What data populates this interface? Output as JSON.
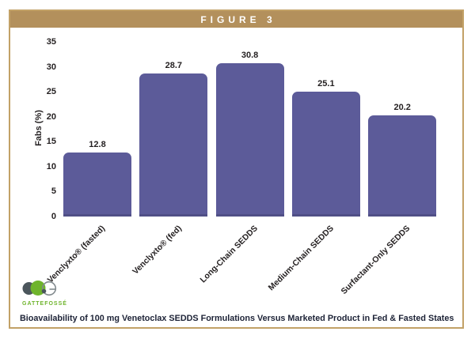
{
  "figure": {
    "header": "FIGURE 3"
  },
  "colors": {
    "accent_tan": "#b3905c",
    "frame_border_tan": "#c2a167",
    "bar_purple": "#5c5b99",
    "caption_navy": "#1c2236",
    "logo_green": "#6fb42c",
    "logo_gray": "#4b565c",
    "axis_text": "#231f20"
  },
  "logo": {
    "brand": "GATTEFOSSÉ"
  },
  "caption": "Bioavailability of 100 mg Venetoclax SEDDS Formulations Versus Marketed Product in Fed & Fasted States",
  "chart_data": {
    "type": "bar",
    "categories": [
      "Venclyxto® (fasted)",
      "Venclyxto® (fed)",
      "Long-Chain SEDDS",
      "Medium-Chain SEDDS",
      "Surfactant-Only SEDDS"
    ],
    "values": [
      12.8,
      28.7,
      30.8,
      25.1,
      20.2
    ],
    "value_labels": [
      "12.8",
      "28.7",
      "30.8",
      "25.1",
      "20.2"
    ],
    "title": "",
    "xlabel": "",
    "ylabel": "Fabs (%)",
    "ylim": [
      0,
      35
    ],
    "yticks": [
      0,
      5,
      10,
      15,
      20,
      25,
      30,
      35
    ],
    "grid": false,
    "legend": false,
    "bar_color": "#5c5b99"
  }
}
